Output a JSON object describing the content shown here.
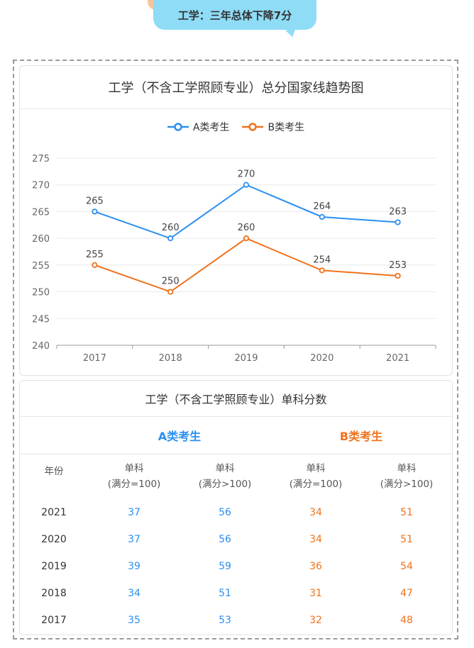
{
  "banner": {
    "text": "工学：三年总体下降7分"
  },
  "chart_data": {
    "type": "line",
    "title": "工学（不含工学照顾专业）总分国家线趋势图",
    "categories": [
      "2017",
      "2018",
      "2019",
      "2020",
      "2021"
    ],
    "series": [
      {
        "name": "A类考生",
        "values": [
          265,
          260,
          270,
          264,
          263
        ],
        "color": "#2b8ff0"
      },
      {
        "name": "B类考生",
        "values": [
          255,
          250,
          260,
          254,
          253
        ],
        "color": "#f0721c"
      }
    ],
    "ylim": [
      240,
      275
    ],
    "yticks": [
      240,
      245,
      250,
      255,
      260,
      265,
      270,
      275
    ],
    "grid": true,
    "legend": "top"
  },
  "table": {
    "title": "工学（不含工学照顾专业）单科分数",
    "group_a": "A类考生",
    "group_b": "B类考生",
    "headers": [
      {
        "line1": "年份",
        "line2": ""
      },
      {
        "line1": "单科",
        "line2": "(满分=100)"
      },
      {
        "line1": "单科",
        "line2": "(满分>100)"
      },
      {
        "line1": "单科",
        "line2": "(满分=100)"
      },
      {
        "line1": "单科",
        "line2": "(满分>100)"
      }
    ],
    "rows": [
      {
        "year": "2021",
        "a1": "37",
        "a2": "56",
        "b1": "34",
        "b2": "51"
      },
      {
        "year": "2020",
        "a1": "37",
        "a2": "56",
        "b1": "34",
        "b2": "51"
      },
      {
        "year": "2019",
        "a1": "39",
        "a2": "59",
        "b1": "36",
        "b2": "54"
      },
      {
        "year": "2018",
        "a1": "34",
        "a2": "51",
        "b1": "31",
        "b2": "47"
      },
      {
        "year": "2017",
        "a1": "35",
        "a2": "53",
        "b1": "32",
        "b2": "48"
      }
    ]
  },
  "colors": {
    "a": "#2b8ff0",
    "b": "#f0721c",
    "banner": "#8fdcf7"
  }
}
